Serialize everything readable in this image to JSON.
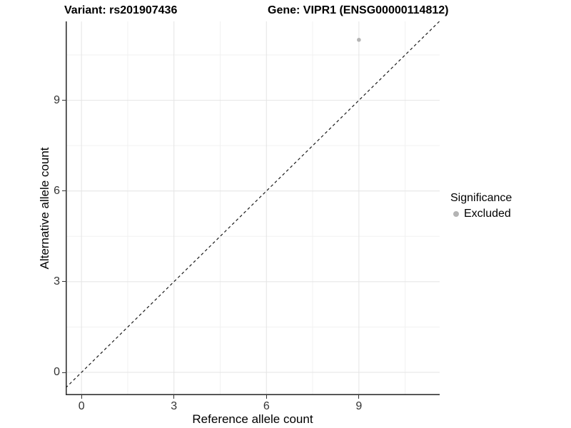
{
  "chart_data": {
    "type": "scatter",
    "title_left": "Variant: rs201907436",
    "title_right": "Gene: VIPR1 (ENSG00000114812)",
    "xlabel": "Reference allele count",
    "ylabel": "Alternative allele count",
    "xlim": [
      -0.513,
      11.62
    ],
    "ylim": [
      -0.755,
      11.61
    ],
    "x_ticks": [
      0,
      3,
      6,
      9
    ],
    "y_ticks": [
      0,
      3,
      6,
      9
    ],
    "grid": {
      "x_major": [
        0,
        3,
        6,
        9
      ],
      "x_minor": [
        1.5,
        4.5,
        7.5,
        10.5
      ],
      "y_major": [
        0,
        3,
        6,
        9
      ],
      "y_minor": [
        1.5,
        4.5,
        7.5,
        10.5
      ]
    },
    "points": [
      {
        "x": 9,
        "y": 11,
        "series": "Excluded"
      }
    ],
    "abline": {
      "slope": 1,
      "intercept": 0,
      "style": "dashed"
    },
    "legend": {
      "position": "right",
      "title": "Significance",
      "entries": [
        {
          "label": "Excluded",
          "color": "#b4b4b4",
          "marker": "dot-icon"
        }
      ]
    },
    "colors": {
      "point": "#b4b4b4",
      "axis_line": "#333333",
      "tick_label": "#333333",
      "grid_major": "#e4e4e4",
      "grid_minor": "#f1f1f1",
      "dashed_line": "#1a1a1a"
    }
  }
}
